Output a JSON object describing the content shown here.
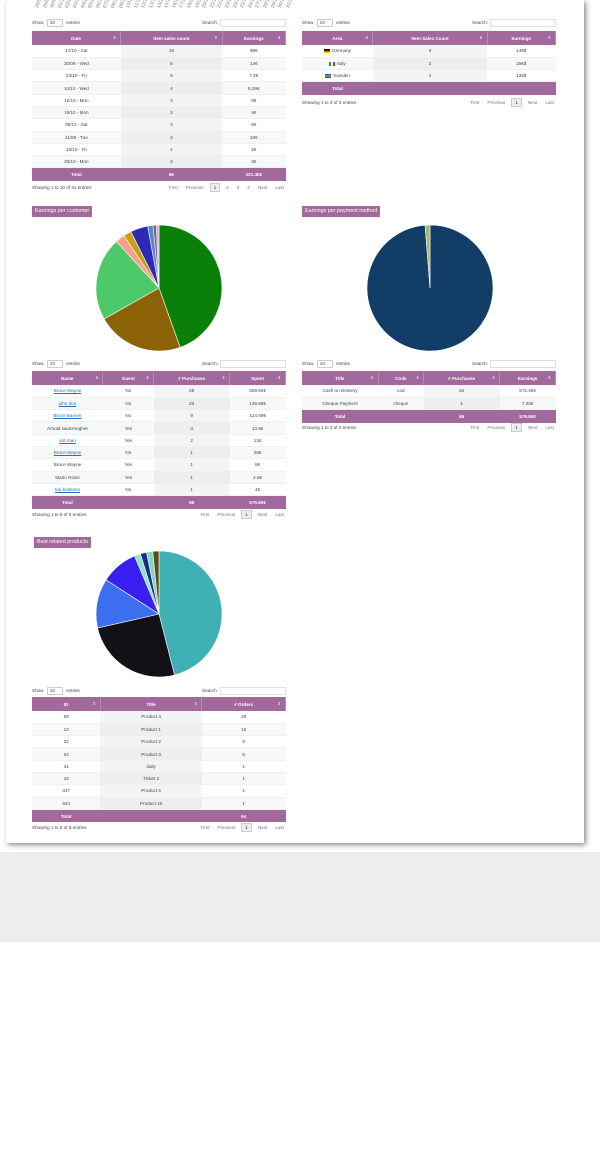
{
  "axis_labels": [
    "28/09",
    "29/09",
    "30/09",
    "01/10",
    "02/10",
    "03/10",
    "04/10",
    "05/10",
    "06/10",
    "07/10",
    "08/10",
    "09/10",
    "10/10",
    "11/10",
    "12/10",
    "13/10",
    "14/10",
    "15/10",
    "16/10",
    "17/10",
    "18/10",
    "19/10",
    "20/10",
    "21/10",
    "22/10",
    "23/10",
    "24/10",
    "25/10",
    "26/10",
    "27/10",
    "28/10",
    "29/10",
    "30/10",
    "31/10"
  ],
  "controls": {
    "show": "Show",
    "entries": "entries",
    "search": "Search:",
    "len": "10"
  },
  "sales_by_day": {
    "headers": [
      "Date",
      "Item sales count",
      "Earnings"
    ],
    "rows": [
      [
        "17/10 - Sat",
        "19",
        "99€"
      ],
      [
        "30/09 - Wed",
        "6",
        "14€"
      ],
      [
        "23/10 - Fri",
        "6",
        "7.4€"
      ],
      [
        "14/10 - Wed",
        "4",
        "5.28€"
      ],
      [
        "12/10 - Mon",
        "3",
        "0€"
      ],
      [
        "19/10 - Mon",
        "3",
        "4€"
      ],
      [
        "05/12 - Sat",
        "3",
        "6€"
      ],
      [
        "11/08 - Tue",
        "2",
        "10€"
      ],
      [
        "16/10 - Fri",
        "2",
        "2€"
      ],
      [
        "26/10 - Mon",
        "2",
        "3€"
      ]
    ],
    "footer": [
      "Total",
      "66",
      "221.40€"
    ],
    "info": "Showing 1 to 10 of 31 entries",
    "pager": [
      "First",
      "Previous",
      "1",
      "2",
      "3",
      "4",
      "Next",
      "Last"
    ]
  },
  "sales_by_area": {
    "headers": [
      "Area",
      "Item Sales Count",
      "Earnings"
    ],
    "rows": [
      {
        "flag": "germany",
        "area": "Germany",
        "count": "3",
        "earnings": "14€$"
      },
      {
        "flag": "italy",
        "area": "Italy",
        "count": "2",
        "earnings": "25€$"
      },
      {
        "flag": "sweden",
        "area": "Sweden",
        "count": "1",
        "earnings": "12€$"
      }
    ],
    "footer": [
      "Total",
      "",
      ""
    ],
    "info": "Showing 1 to 3 of 3 entries",
    "pager": [
      "First",
      "Previous",
      "1",
      "Next",
      "Last"
    ]
  },
  "earnings_per_customer": {
    "title": "Earnings per customer",
    "headers": [
      "Name",
      "Guest",
      "# Purchases",
      "Spent"
    ],
    "rows": [
      [
        "Bruce Wayne",
        "No",
        "25",
        "259.62€",
        true
      ],
      [
        "john doe",
        "No",
        "23",
        "129.69€",
        true
      ],
      [
        "Bruce Banner",
        "No",
        "9",
        "124.69€",
        true
      ],
      [
        "Arnold swarznegher",
        "Yes",
        "3",
        "13.8€",
        false
      ],
      [
        "ant man",
        "Yes",
        "2",
        "12€",
        true
      ],
      [
        "Bruce Wayne",
        "No",
        "1",
        "26€",
        true
      ],
      [
        "Bruce Wayne",
        "Yes",
        "1",
        "8€",
        false
      ],
      [
        "Mario Rossi",
        "Yes",
        "1",
        "4.8€",
        false
      ],
      [
        "toe bastiano",
        "No",
        "1",
        "4€",
        true
      ]
    ],
    "footer": [
      "Total",
      "",
      "66",
      "579.60€"
    ],
    "info": "Showing 1 to 9 of 9 entries",
    "pager": [
      "First",
      "Previous",
      "1",
      "Next",
      "Last"
    ]
  },
  "earnings_per_payment": {
    "title": "Earnings per payment method",
    "headers": [
      "Title",
      "Code",
      "# Purchases",
      "Earnings"
    ],
    "rows": [
      [
        "Cash on Delivery",
        "cod",
        "64",
        "572.40€"
      ],
      [
        "Cheque Payment",
        "cheque",
        "1",
        "7.20€"
      ]
    ],
    "footer": [
      "Total",
      "",
      "65",
      "579.60€"
    ],
    "info": "Showing 1 to 2 of 2 entries",
    "pager": [
      "First",
      "Previous",
      "1",
      "Next",
      "Last"
    ]
  },
  "best_products": {
    "title": "Best related products",
    "headers": [
      "ID",
      "Title",
      "# Orders"
    ],
    "rows": [
      [
        "59",
        "Product 4",
        "29"
      ],
      [
        "12",
        "Product 1",
        "16"
      ],
      [
        "32",
        "Product 2",
        "8"
      ],
      [
        "64",
        "Product 3",
        "6"
      ],
      [
        "41",
        "daily",
        "1"
      ],
      [
        "42",
        "Ticket 2",
        "1"
      ],
      [
        "347",
        "Product 6",
        "1"
      ],
      [
        "943",
        "Product 10",
        "1"
      ]
    ],
    "footer": [
      "Total",
      "",
      "64"
    ],
    "info": "Showing 1 to 8 of 8 entries",
    "pager": [
      "First",
      "Previous",
      "1",
      "Next",
      "Last"
    ]
  },
  "chart_data": [
    {
      "type": "pie",
      "title": "Earnings per customer",
      "labels": [
        "Bruce Wayne",
        "john doe",
        "Bruce Banner",
        "Arnold swarznegher",
        "ant man",
        "Bruce Wayne",
        "Bruce Wayne",
        "Mario Rossi",
        "toe bastiano"
      ],
      "values": [
        259.62,
        129.69,
        124.69,
        13.8,
        12,
        26,
        8,
        4.8,
        4
      ],
      "colors": [
        "#0a7f0a",
        "#8b6306",
        "#4dc96a",
        "#f5a08a",
        "#c9a011",
        "#2e2ab8",
        "#4f8cc9",
        "#8a4f9a",
        "#bbbbbb"
      ]
    },
    {
      "type": "pie",
      "title": "Earnings per payment method",
      "labels": [
        "Cash on Delivery",
        "Cheque Payment"
      ],
      "values": [
        572.4,
        7.2
      ],
      "colors": [
        "#123d66",
        "#a8b86a"
      ]
    },
    {
      "type": "pie",
      "title": "Best related products",
      "labels": [
        "Product 4",
        "Product 1",
        "Product 2",
        "Product 3",
        "daily",
        "Ticket 2",
        "Product 6",
        "Product 10"
      ],
      "values": [
        29,
        16,
        8,
        6,
        1,
        1,
        1,
        1
      ],
      "colors": [
        "#3fb0b3",
        "#141018",
        "#3e6ef0",
        "#3a1ff0",
        "#8fe3c9",
        "#1e2b8c",
        "#7fd8c0",
        "#5c4a1a"
      ]
    }
  ]
}
